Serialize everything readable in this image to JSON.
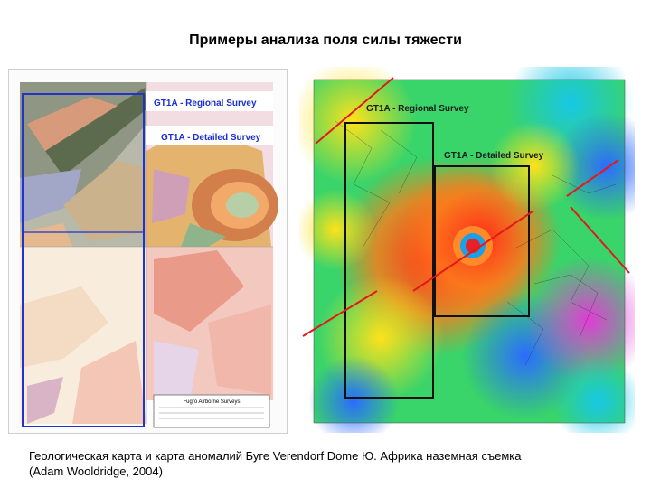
{
  "slide": {
    "title": "Примеры анализа поля силы тяжести",
    "caption_line1": "Геологическая карта и карта аномалий Буге Verendorf Dome Ю. Африка наземная съемка",
    "caption_line2": "(Adam Wooldridge, 2004)"
  },
  "geology_map": {
    "label_regional": "GT1A - Regional Survey",
    "label_detailed": "GT1A - Detailed Survey",
    "legend_title": "Fugro Airborne Surveys",
    "colors": {
      "frame": "#2233cc",
      "label": "#1a2fd0"
    }
  },
  "gravity_map": {
    "label_regional": "GT1A - Regional Survey",
    "label_detailed": "GT1A - Detailed Survey",
    "colors": {
      "frame": "#111111",
      "lines": "#e11a1a"
    }
  }
}
